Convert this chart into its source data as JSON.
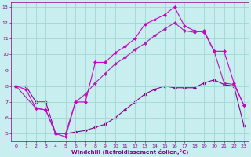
{
  "xlabel": "Windchill (Refroidissement éolien,°C)",
  "bg_color": "#c8eef0",
  "grid_color": "#a0d8d0",
  "line_color1": "#cc00cc",
  "line_color2": "#aa22aa",
  "line_color3": "#880088",
  "xlim": [
    -0.5,
    23.5
  ],
  "ylim": [
    4.5,
    13.3
  ],
  "yticks": [
    5,
    6,
    7,
    8,
    9,
    10,
    11,
    12,
    13
  ],
  "xticks": [
    0,
    1,
    2,
    3,
    4,
    5,
    6,
    7,
    8,
    9,
    10,
    11,
    12,
    13,
    14,
    15,
    16,
    17,
    18,
    19,
    20,
    21,
    22,
    23
  ],
  "line1_x": [
    0,
    1,
    2,
    3,
    4,
    5,
    6,
    7,
    8,
    9,
    10,
    11,
    12,
    13,
    14,
    15,
    16,
    17,
    18,
    19,
    20,
    21,
    22,
    23
  ],
  "line1_y": [
    8.0,
    7.8,
    6.6,
    6.5,
    5.0,
    4.8,
    7.0,
    7.0,
    9.5,
    9.5,
    10.1,
    10.5,
    11.0,
    11.9,
    12.2,
    12.5,
    13.0,
    11.8,
    11.5,
    11.4,
    10.2,
    10.2,
    8.2,
    6.8
  ],
  "line2_x": [
    0,
    2,
    3,
    4,
    5,
    6,
    7,
    8,
    9,
    10,
    11,
    12,
    13,
    14,
    15,
    16,
    17,
    18,
    19,
    20,
    21,
    22,
    23
  ],
  "line2_y": [
    8.0,
    6.6,
    6.5,
    5.0,
    5.0,
    7.0,
    7.5,
    8.2,
    8.8,
    9.4,
    9.8,
    10.3,
    10.7,
    11.2,
    11.6,
    12.0,
    11.5,
    11.4,
    11.5,
    10.2,
    8.2,
    8.1,
    6.8
  ],
  "line3_x": [
    0,
    1,
    2,
    3,
    4,
    5,
    6,
    7,
    8,
    9,
    10,
    11,
    12,
    13,
    14,
    15,
    16,
    17,
    18,
    19,
    20,
    21,
    22,
    23
  ],
  "line3_y": [
    8.0,
    8.0,
    7.0,
    7.0,
    5.0,
    5.0,
    5.1,
    5.2,
    5.4,
    5.6,
    6.0,
    6.5,
    7.0,
    7.5,
    7.8,
    8.0,
    7.9,
    7.9,
    7.9,
    8.2,
    8.4,
    8.1,
    8.0,
    5.5
  ],
  "xlabel_color": "#880088",
  "tick_color": "#880088",
  "markersize": 2.5
}
